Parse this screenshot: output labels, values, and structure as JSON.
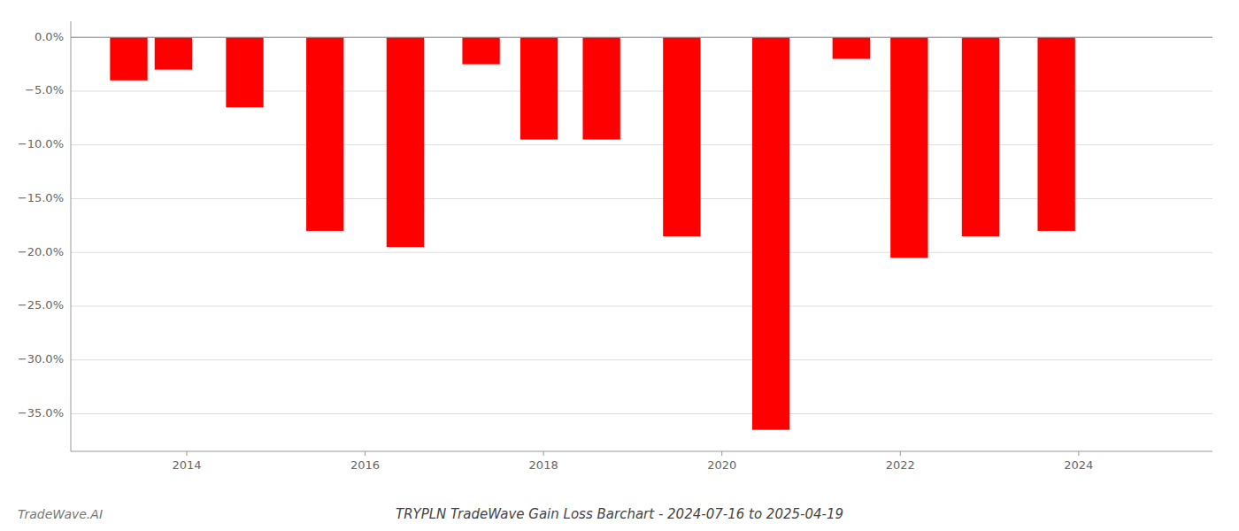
{
  "chart_data": {
    "type": "bar",
    "title": "TRYPLN TradeWave Gain Loss Barchart - 2024-07-16 to 2025-04-19",
    "annotations": [
      "TradeWave.AI"
    ],
    "x": [
      2013.35,
      2013.85,
      2014.65,
      2015.55,
      2016.45,
      2017.3,
      2017.95,
      2018.65,
      2019.55,
      2020.55,
      2021.45,
      2022.1,
      2022.9,
      2023.75
    ],
    "values": [
      -4.0,
      -3.0,
      -6.5,
      -18.0,
      -19.5,
      -2.5,
      -9.5,
      -9.5,
      -18.5,
      -36.5,
      -2.0,
      -20.5,
      -18.5,
      -18.0
    ],
    "color": "#ff0000",
    "xlim": [
      2012.7,
      2025.5
    ],
    "ylim": [
      -38.5,
      1.5
    ],
    "xticks": [
      2014,
      2016,
      2018,
      2020,
      2022,
      2024
    ],
    "yticks": [
      {
        "value": 0.0,
        "label": "0.0%"
      },
      {
        "value": -5.0,
        "label": "−5.0%"
      },
      {
        "value": -10.0,
        "label": "−10.0%"
      },
      {
        "value": -15.0,
        "label": "−15.0%"
      },
      {
        "value": -20.0,
        "label": "−20.0%"
      },
      {
        "value": -25.0,
        "label": "−25.0%"
      },
      {
        "value": -30.0,
        "label": "−30.0%"
      },
      {
        "value": -35.0,
        "label": "−35.0%"
      }
    ],
    "grid": true
  }
}
